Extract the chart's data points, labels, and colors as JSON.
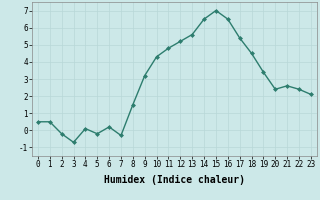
{
  "x": [
    0,
    1,
    2,
    3,
    4,
    5,
    6,
    7,
    8,
    9,
    10,
    11,
    12,
    13,
    14,
    15,
    16,
    17,
    18,
    19,
    20,
    21,
    22,
    23
  ],
  "y": [
    0.5,
    0.5,
    -0.2,
    -0.7,
    0.1,
    -0.2,
    0.2,
    -0.3,
    1.5,
    3.2,
    4.3,
    4.8,
    5.2,
    5.6,
    6.5,
    7.0,
    6.5,
    5.4,
    4.5,
    3.4,
    2.4,
    2.6,
    2.4,
    2.1
  ],
  "line_color": "#2d7d6e",
  "marker": "D",
  "marker_size": 2.0,
  "bg_color": "#cce8e8",
  "grid_color": "#b8d8d8",
  "xlabel": "Humidex (Indice chaleur)",
  "xlim": [
    -0.5,
    23.5
  ],
  "ylim": [
    -1.5,
    7.5
  ],
  "yticks": [
    -1,
    0,
    1,
    2,
    3,
    4,
    5,
    6,
    7
  ],
  "xticks": [
    0,
    1,
    2,
    3,
    4,
    5,
    6,
    7,
    8,
    9,
    10,
    11,
    12,
    13,
    14,
    15,
    16,
    17,
    18,
    19,
    20,
    21,
    22,
    23
  ],
  "tick_label_fontsize": 5.5,
  "xlabel_fontsize": 7.0,
  "linewidth": 1.0
}
